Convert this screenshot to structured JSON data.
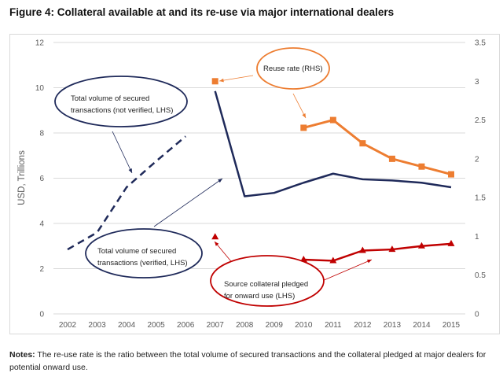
{
  "title": "Figure 4: Collateral available at and its re-use via major international dealers",
  "notes": {
    "label": "Notes:",
    "text": " The re-use rate is the ratio between the total volume of secured transactions and the collateral pledged at major dealers for potential onward use."
  },
  "chart_data": {
    "type": "line",
    "title": "Figure 4: Collateral available at and its re-use via major international dealers",
    "ylabel": "USD, Trillions",
    "ylim": [
      0,
      12
    ],
    "y2lim": [
      0,
      3.5
    ],
    "yticks": [
      "0",
      "2",
      "4",
      "6",
      "8",
      "10",
      "12"
    ],
    "y2ticks": [
      "0",
      "0.5",
      "1",
      "1.5",
      "2",
      "2.5",
      "3",
      "3.5"
    ],
    "grid": true,
    "x": [
      "2002",
      "2003",
      "2004",
      "2005",
      "2006",
      "2007",
      "2008",
      "2009",
      "2010",
      "2011",
      "2012",
      "2013",
      "2014",
      "2015"
    ],
    "series": [
      {
        "name": "Total volume of secured transactions (not verified, LHS)",
        "axis": "left",
        "style": "dashed",
        "color": "#1f2a5a",
        "values": [
          2.85,
          3.6,
          5.6,
          6.75,
          7.85,
          null,
          null,
          null,
          null,
          null,
          null,
          null,
          null,
          null
        ]
      },
      {
        "name": "Total volume of secured transactions (verified, LHS)",
        "axis": "left",
        "style": "solid",
        "color": "#1f2a5a",
        "values": [
          null,
          null,
          null,
          null,
          null,
          9.85,
          5.2,
          5.35,
          5.8,
          6.2,
          5.95,
          5.9,
          5.8,
          5.6
        ]
      },
      {
        "name": "Source collateral pledged for onward use (LHS)",
        "axis": "left",
        "style": "triangle",
        "color": "#c00000",
        "values": [
          null,
          null,
          null,
          null,
          null,
          3.4,
          null,
          null,
          2.4,
          2.35,
          2.8,
          2.85,
          3.0,
          3.1
        ]
      },
      {
        "name": "Reuse rate (RHS)",
        "axis": "right",
        "style": "square",
        "color": "#ed7d31",
        "values": [
          null,
          null,
          null,
          null,
          null,
          3.0,
          null,
          null,
          2.4,
          2.5,
          2.2,
          2.0,
          1.9,
          1.8
        ]
      }
    ],
    "annotations": [
      {
        "text": [
          "Total volume of secured",
          "transactions (not verified, LHS)"
        ],
        "color": "#1f2a5a"
      },
      {
        "text": [
          "Total volume of secured",
          "transactions (verified, LHS)"
        ],
        "color": "#1f2a5a"
      },
      {
        "text": [
          "Reuse rate (RHS)"
        ],
        "color": "#ed7d31"
      },
      {
        "text": [
          "Source collateral pledged",
          "for onward use (LHS)"
        ],
        "color": "#c00000"
      }
    ]
  }
}
